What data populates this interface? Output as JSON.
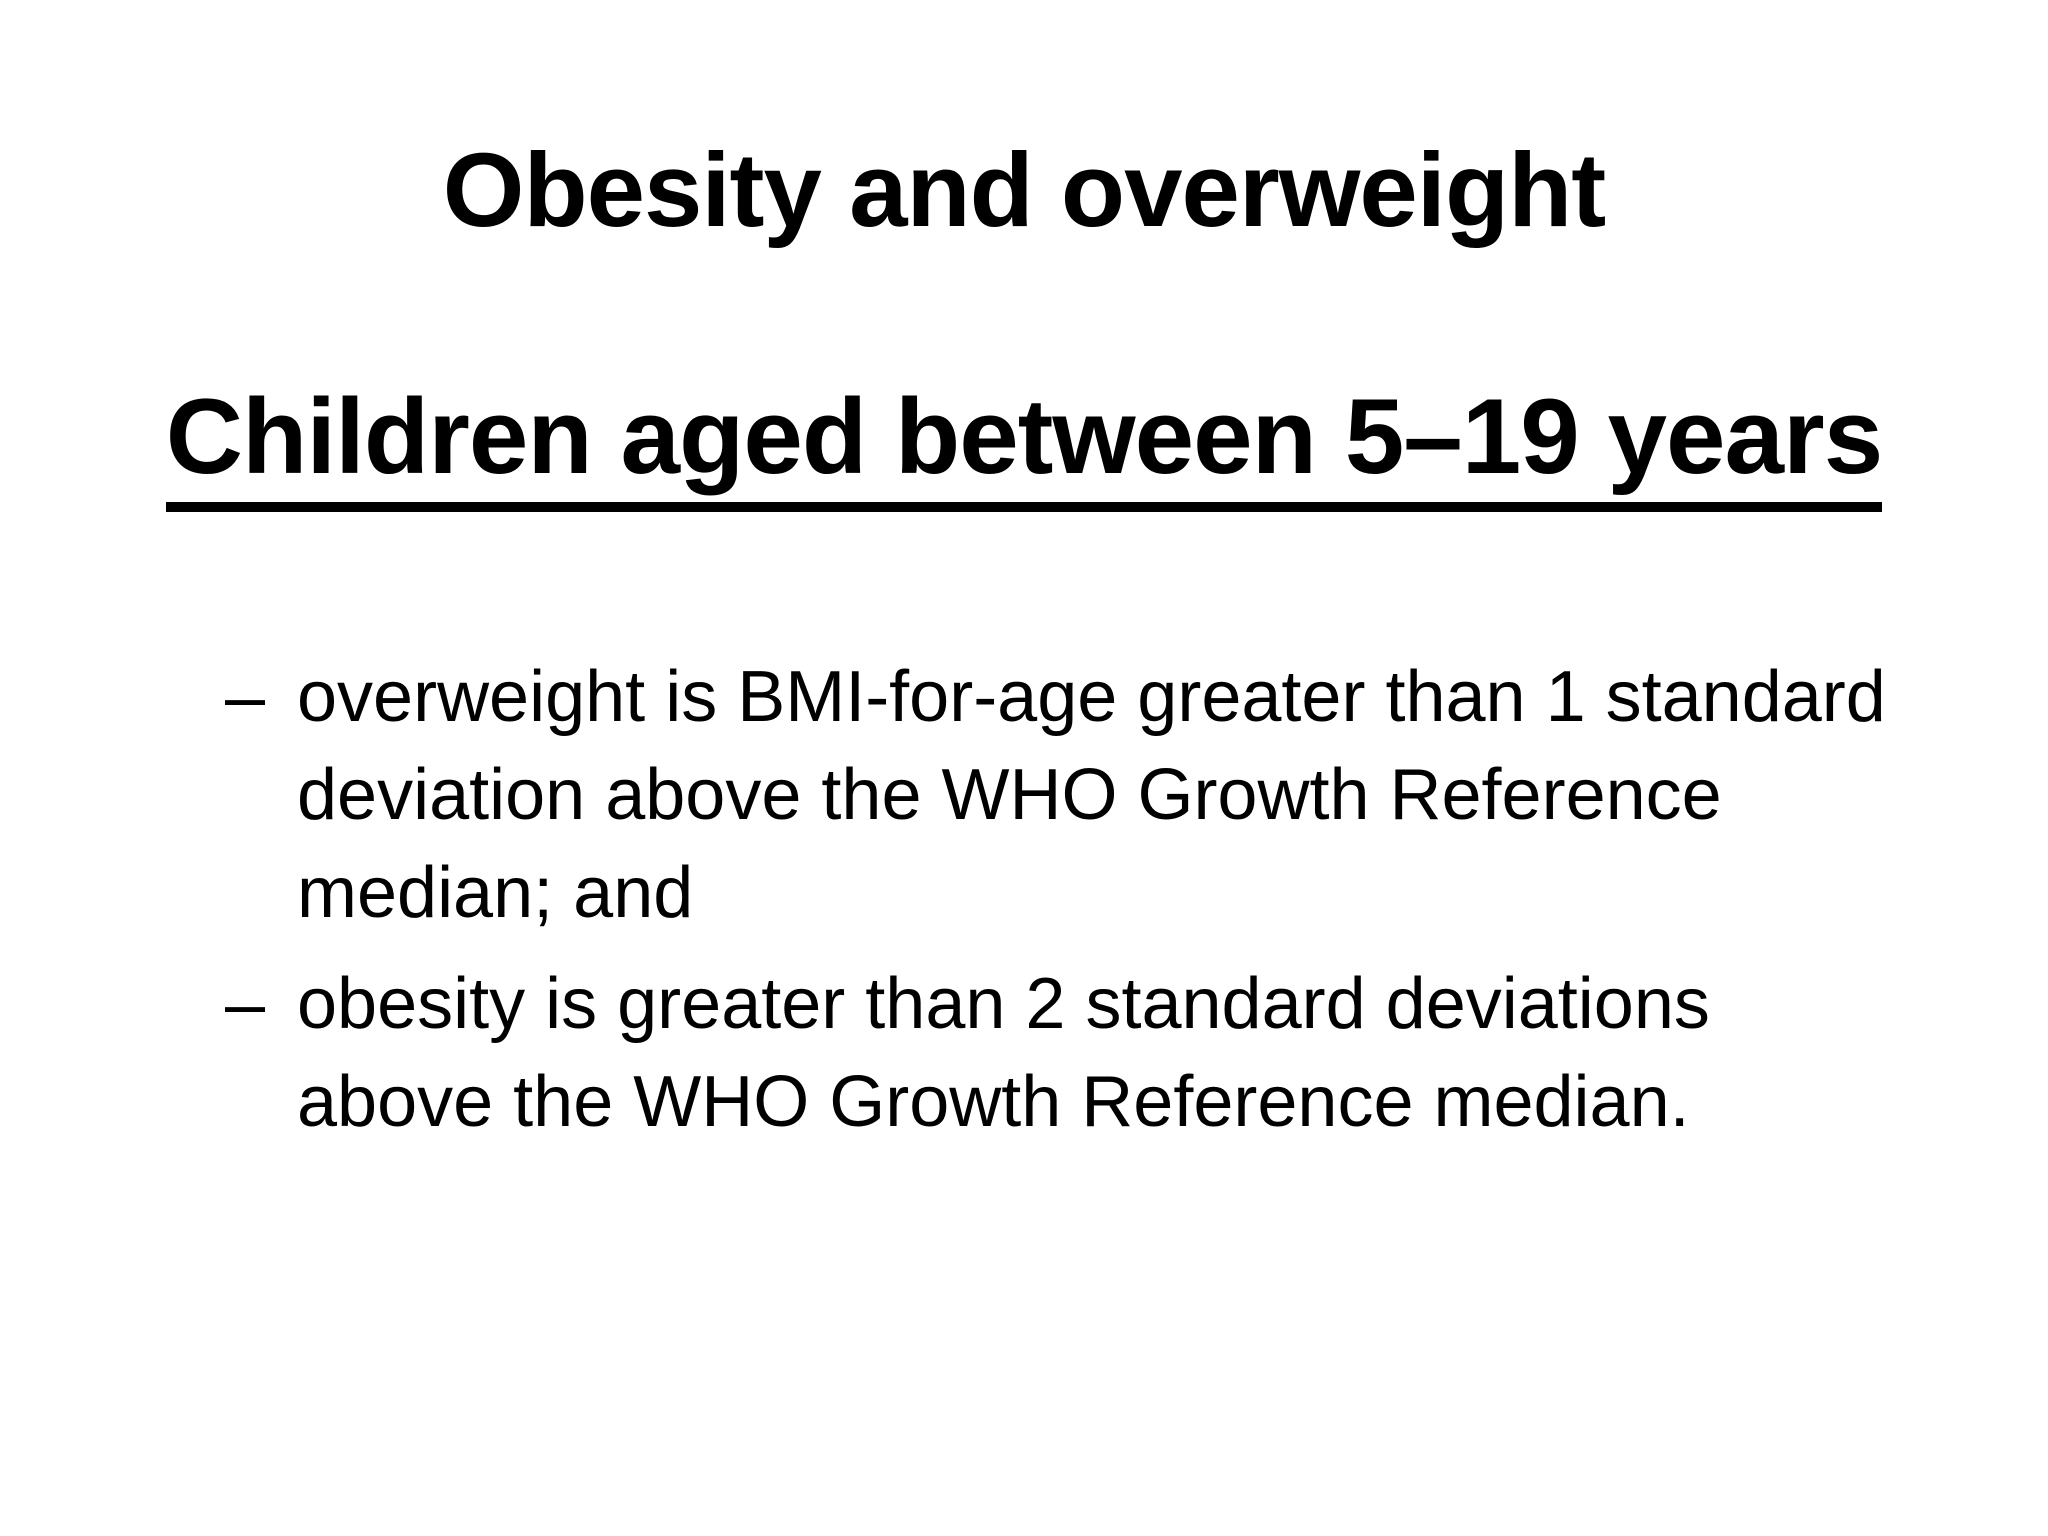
{
  "slide": {
    "title": "Obesity and overweight",
    "subtitle": "Children aged between 5–19 years",
    "bullet_marker": "–",
    "bullets": [
      {
        "text": "overweight is BMI-for-age greater than 1 standard deviation above the WHO Growth Reference median; and"
      },
      {
        "text": "obesity is greater than 2 standard deviations above the WHO Growth Reference median."
      }
    ],
    "colors": {
      "background": "#ffffff",
      "text": "#000000"
    }
  }
}
